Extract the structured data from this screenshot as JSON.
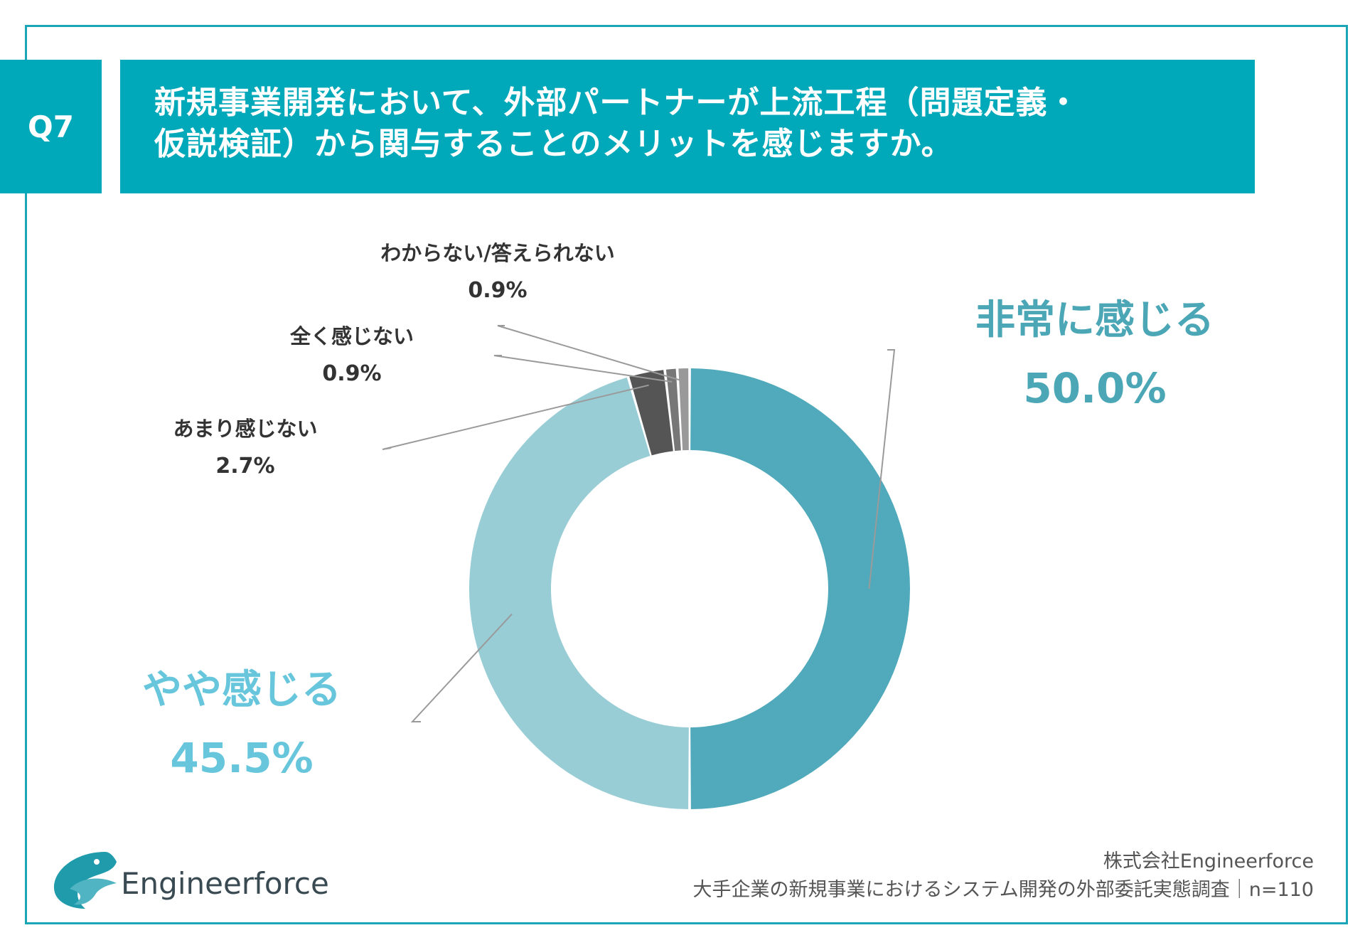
{
  "question": {
    "number": "Q7",
    "title_line1": "新規事業開発において、外部パートナーが上流工程（問題定義・",
    "title_line2": "仮説検証）から関与することのメリットを感じますか。"
  },
  "chart_data": {
    "type": "pie",
    "variant": "donut",
    "categories": [
      "非常に感じる",
      "やや感じる",
      "あまり感じない",
      "全く感じない",
      "わからない/答えられない"
    ],
    "values": [
      50.0,
      45.5,
      2.7,
      0.9,
      0.9
    ],
    "labels": [
      "50.0%",
      "45.5%",
      "2.7%",
      "0.9%",
      "0.9%"
    ],
    "colors": [
      "#51aabb",
      "#98cdd6",
      "#555555",
      "#777777",
      "#999999"
    ],
    "label_colors": [
      "#4ba6b6",
      "#68c6dc",
      "#333333",
      "#333333",
      "#333333"
    ]
  },
  "footer": {
    "company": "株式会社Engineerforce",
    "survey": "大手企業の新規事業におけるシステム開発の外部委託実態調査｜n=110"
  },
  "logo": {
    "text": "Engineerforce",
    "icon": "bird-logo-icon"
  }
}
